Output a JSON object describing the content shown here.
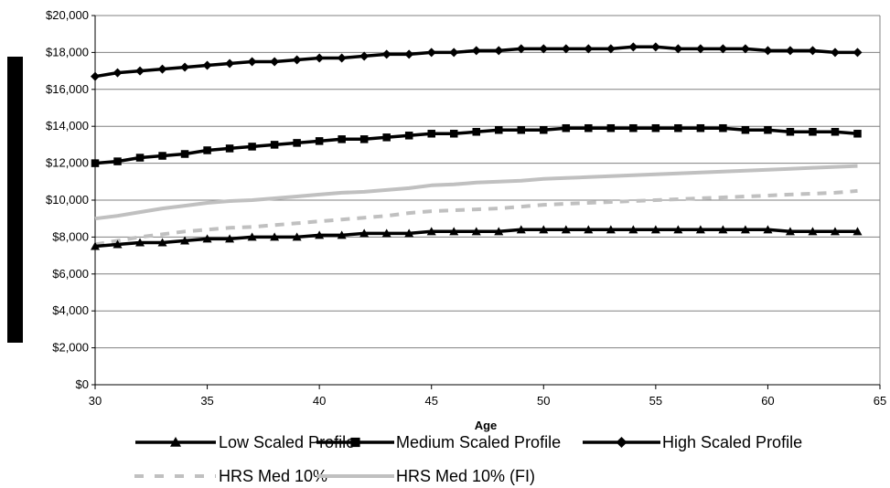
{
  "chart_data": {
    "type": "line",
    "title": "",
    "xlabel": "Age",
    "ylabel": "",
    "xlim": [
      30,
      65
    ],
    "ylim": [
      0,
      20000
    ],
    "x_ticks": [
      30,
      35,
      40,
      45,
      50,
      55,
      60,
      65
    ],
    "y_ticks": [
      0,
      2000,
      4000,
      6000,
      8000,
      10000,
      12000,
      14000,
      16000,
      18000,
      20000
    ],
    "x_tick_labels": [
      "30",
      "35",
      "40",
      "45",
      "50",
      "55",
      "60",
      "65"
    ],
    "y_tick_labels": [
      "$0",
      "$2,000",
      "$4,000",
      "$6,000",
      "$8,000",
      "$10,000",
      "$12,000",
      "$14,000",
      "$16,000",
      "$18,000",
      "$20,000"
    ],
    "grid": "horizontal",
    "legend_position": "bottom",
    "x": [
      30,
      31,
      32,
      33,
      34,
      35,
      36,
      37,
      38,
      39,
      40,
      41,
      42,
      43,
      44,
      45,
      46,
      47,
      48,
      49,
      50,
      51,
      52,
      53,
      54,
      55,
      56,
      57,
      58,
      59,
      60,
      61,
      62,
      63,
      64
    ],
    "series": [
      {
        "name": "Low  Scaled Profile",
        "color": "#000000",
        "dash": "solid",
        "marker": "triangle",
        "values": [
          7500,
          7600,
          7700,
          7700,
          7800,
          7900,
          7900,
          8000,
          8000,
          8000,
          8100,
          8100,
          8200,
          8200,
          8200,
          8300,
          8300,
          8300,
          8300,
          8400,
          8400,
          8400,
          8400,
          8400,
          8400,
          8400,
          8400,
          8400,
          8400,
          8400,
          8400,
          8300,
          8300,
          8300,
          8300
        ]
      },
      {
        "name": "Medium Scaled Profile",
        "color": "#000000",
        "dash": "solid",
        "marker": "square",
        "values": [
          12000,
          12100,
          12300,
          12400,
          12500,
          12700,
          12800,
          12900,
          13000,
          13100,
          13200,
          13300,
          13300,
          13400,
          13500,
          13600,
          13600,
          13700,
          13800,
          13800,
          13800,
          13900,
          13900,
          13900,
          13900,
          13900,
          13900,
          13900,
          13900,
          13800,
          13800,
          13700,
          13700,
          13700,
          13600
        ]
      },
      {
        "name": "High Scaled Profile",
        "color": "#000000",
        "dash": "solid",
        "marker": "diamond",
        "values": [
          16700,
          16900,
          17000,
          17100,
          17200,
          17300,
          17400,
          17500,
          17500,
          17600,
          17700,
          17700,
          17800,
          17900,
          17900,
          18000,
          18000,
          18100,
          18100,
          18200,
          18200,
          18200,
          18200,
          18200,
          18300,
          18300,
          18200,
          18200,
          18200,
          18200,
          18100,
          18100,
          18100,
          18000,
          18000
        ]
      },
      {
        "name": "HRS Med 10%",
        "color": "#c0c0c0",
        "dash": "dashed",
        "marker": "none",
        "values": [
          7600,
          7800,
          8000,
          8150,
          8300,
          8400,
          8500,
          8550,
          8650,
          8750,
          8850,
          8950,
          9050,
          9150,
          9300,
          9400,
          9450,
          9500,
          9550,
          9650,
          9750,
          9800,
          9850,
          9900,
          9950,
          10000,
          10050,
          10100,
          10150,
          10200,
          10250,
          10300,
          10350,
          10400,
          10500
        ]
      },
      {
        "name": "HRS Med 10% (FI)",
        "color": "#c0c0c0",
        "dash": "solid",
        "marker": "none",
        "values": [
          9000,
          9150,
          9350,
          9550,
          9700,
          9850,
          9950,
          10000,
          10100,
          10200,
          10300,
          10400,
          10450,
          10550,
          10650,
          10800,
          10850,
          10950,
          11000,
          11050,
          11150,
          11200,
          11250,
          11300,
          11350,
          11400,
          11450,
          11500,
          11550,
          11600,
          11650,
          11700,
          11750,
          11800,
          11850
        ]
      }
    ]
  }
}
